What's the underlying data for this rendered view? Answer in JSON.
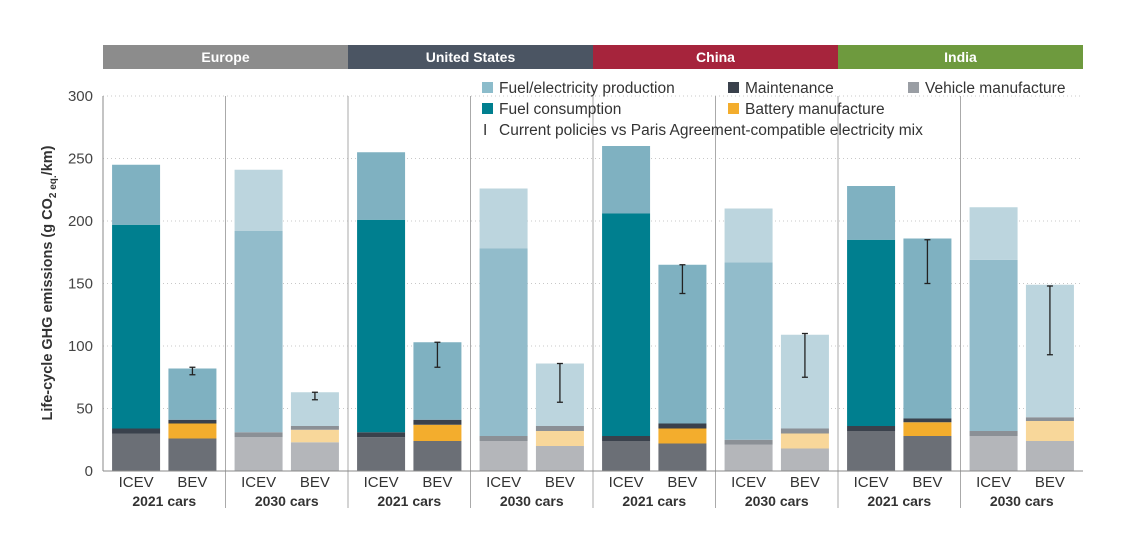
{
  "chart_data": {
    "type": "bar",
    "stacked": true,
    "ylabel": "Life-cycle GHG emissions (g CO2 eq./km)",
    "ylabel_parts": {
      "pre": "Life-cycle GHG emissions (g CO",
      "sub1": "2 eq.",
      "post": "/km)"
    },
    "ylim": [
      0,
      300
    ],
    "yticks": [
      "0",
      "50",
      "100",
      "150",
      "200",
      "250",
      "300"
    ],
    "grid": "horizontal dotted",
    "regions": [
      {
        "name": "Europe",
        "color": "#8c8c8c"
      },
      {
        "name": "United States",
        "color": "#4b5563"
      },
      {
        "name": "China",
        "color": "#a6243c"
      },
      {
        "name": "India",
        "color": "#6e9a3e"
      }
    ],
    "group_labels": [
      "2021 cars",
      "2030 cars",
      "2021 cars",
      "2030 cars",
      "2021 cars",
      "2030 cars",
      "2021 cars",
      "2030 cars"
    ],
    "categories": [
      "ICEV",
      "BEV",
      "ICEV",
      "BEV",
      "ICEV",
      "BEV",
      "ICEV",
      "BEV",
      "ICEV",
      "BEV",
      "ICEV",
      "BEV",
      "ICEV",
      "BEV",
      "ICEV",
      "BEV"
    ],
    "legend": {
      "placement": "top-right",
      "items": [
        {
          "label": "Fuel/electricity production",
          "color": "#8cbccb"
        },
        {
          "label": "Maintenance",
          "color": "#3a414c"
        },
        {
          "label": "Vehicle manufacture",
          "color": "#9a9ea4"
        },
        {
          "label": "Fuel consumption",
          "color": "#007f8f"
        },
        {
          "label": "Battery manufacture",
          "color": "#f3ad2d"
        },
        {
          "label": "Current policies vs Paris Agreement-compatible electricity mix",
          "marker": "I"
        }
      ]
    },
    "series": [
      {
        "name": "Vehicle manufacture",
        "values": [
          30,
          26,
          27,
          23,
          27,
          24,
          24,
          20,
          24,
          22,
          21,
          18,
          32,
          28,
          28,
          24
        ]
      },
      {
        "name": "Battery manufacture",
        "values": [
          0,
          12,
          0,
          10,
          0,
          13,
          0,
          12,
          0,
          12,
          0,
          12,
          0,
          11,
          0,
          16
        ]
      },
      {
        "name": "Maintenance",
        "values": [
          4,
          3,
          4,
          3,
          4,
          4,
          4,
          4,
          4,
          4,
          4,
          4,
          4,
          3,
          4,
          3
        ]
      },
      {
        "name": "Fuel consumption",
        "values": [
          163,
          0,
          161,
          0,
          170,
          0,
          150,
          0,
          178,
          0,
          142,
          0,
          149,
          0,
          137,
          0
        ]
      },
      {
        "name": "Fuel/electricity production",
        "values": [
          48,
          41,
          49,
          27,
          54,
          62,
          48,
          50,
          54,
          127,
          43,
          75,
          43,
          144,
          42,
          106
        ]
      }
    ],
    "error_bars": [
      {
        "index": 1,
        "low": 77,
        "high": 83
      },
      {
        "index": 3,
        "low": 57,
        "high": 63
      },
      {
        "index": 5,
        "low": 83,
        "high": 103
      },
      {
        "index": 7,
        "low": 55,
        "high": 86
      },
      {
        "index": 9,
        "low": 142,
        "high": 165
      },
      {
        "index": 11,
        "low": 75,
        "high": 110
      },
      {
        "index": 13,
        "low": 150,
        "high": 185
      },
      {
        "index": 15,
        "low": 93,
        "high": 148
      }
    ],
    "colors": {
      "Vehicle manufacture": {
        "2021": "#6b6f76",
        "2030": "#b4b6ba"
      },
      "Battery manufacture": {
        "2021": "#f3ad2d",
        "2030": "#f8d79a"
      },
      "Maintenance": {
        "2021": "#3a414c",
        "2030": "#8b9096"
      },
      "Fuel consumption": {
        "2021": "#007f8f",
        "2030": "#92bccb"
      },
      "Fuel/electricity production": {
        "2021": "#7fb1c1",
        "2030": "#bcd5de"
      }
    }
  }
}
